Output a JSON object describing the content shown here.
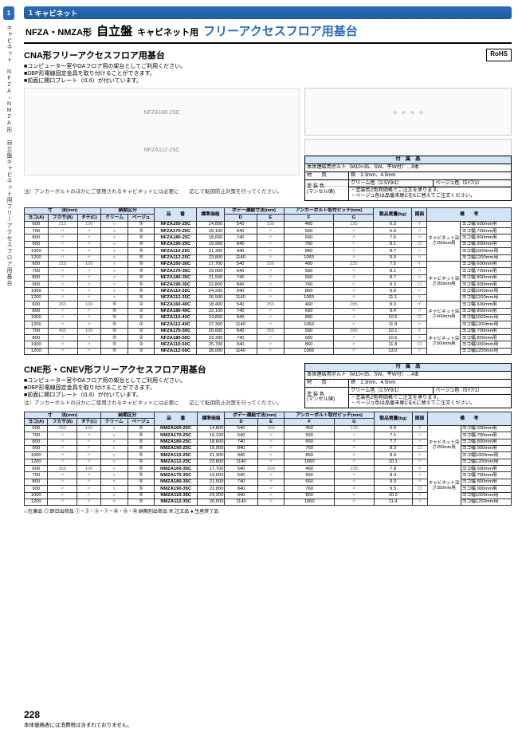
{
  "sidebar": {
    "tab_num": "1",
    "tab_text": "キャビネット",
    "vert_text": "キャビネット　NFZA・NMZA形 自立盤キャビネット用フリーアクセスフロア用基台"
  },
  "header": {
    "num": "1",
    "cat": "キャビネット"
  },
  "title": {
    "prefix": "NFZA・NMZA形",
    "main": "自立盤",
    "sub": "キャビネット用",
    "accent": "フリーアクセスフロア用基台"
  },
  "section1": {
    "title": "CNA形フリーアクセスフロア用基台",
    "rohs": "RoHS",
    "notes": [
      "コンピューター室やOAフロア用の架台としてご利用ください。",
      "DBP形電線固定金具を取り付けることができます。",
      "前面に開口プレート（t1.6）が付いています。"
    ],
    "labels": [
      "NFZA180-25C",
      "NFZA112-25C"
    ],
    "caution": "注）アンカーボルトのほかにご使用されるキャビネットには必要に　　応じて転倒防止対策を行ってください。"
  },
  "accessories": {
    "title": "付　属　品",
    "bolt": "本体連結用ボルト（M10×35、SW、平W付）…4本",
    "mat_label": "材　　質",
    "mat_val": "鉄　2.3mm、4.5mm",
    "color_label": "塗 装 色\n(マンセル値)",
    "color1": "クリーム色（2.5Y9/1）",
    "color2": "ベージュ色（5Y7/1）",
    "color_note": "・塗装色2色同価格でご注文を承ります。\n・ベージュ色は品番末尾CをKに替えてご注文ください。"
  },
  "table1_head": {
    "dim": "寸　　法(mm)",
    "deliv": "納期区分",
    "model": "品　　番",
    "price": "標準価格",
    "body": "ボデー連結寸法(mm)",
    "anchor": "アンカーボルト取付ピッチ(mm)",
    "weight": "製品質量(kg)",
    "drawing": "図面",
    "remarks": "備　　考",
    "a": "ヨコ(A)",
    "b": "フカサ(B)",
    "c": "タテ(C)",
    "cream": "クリーム",
    "beige": "ベージュ",
    "d": "D",
    "e": "E",
    "f": "F",
    "g": "G"
  },
  "table1_rows": [
    {
      "a": "600",
      "b": "215",
      "c": "100",
      "d1": "○",
      "d2": "⑤",
      "m": "NFZA160-25C",
      "p": "14,800",
      "D": "540",
      "E": "100",
      "F": "460",
      "G": "135",
      "w": "6.3",
      "dr": "イ",
      "g": "キャビネット深さ250mm用",
      "r": "ヨコ幅 600mm用"
    },
    {
      "a": "700",
      "b": "〃",
      "c": "〃",
      "d1": "○",
      "d2": "⑤",
      "m": "NFZA170-25C",
      "p": "16,100",
      "D": "640",
      "E": "〃",
      "F": "560",
      "G": "〃",
      "w": "6.9",
      "dr": "〃",
      "g": "",
      "r": "ヨコ幅 700mm用"
    },
    {
      "a": "800",
      "b": "〃",
      "c": "〃",
      "d1": "○",
      "d2": "⑤",
      "m": "NFZA180-25C",
      "p": "18,600",
      "D": "740",
      "E": "〃",
      "F": "660",
      "G": "〃",
      "w": "7.5",
      "dr": "〃",
      "g": "",
      "r": "ヨコ幅 800mm用"
    },
    {
      "a": "900",
      "b": "〃",
      "c": "〃",
      "d1": "○",
      "d2": "⑤",
      "m": "NFZA190-25C",
      "p": "19,900",
      "D": "840",
      "E": "〃",
      "F": "760",
      "G": "〃",
      "w": "8.1",
      "dr": "ロ",
      "g": "",
      "r": "ヨコ幅 900mm用"
    },
    {
      "a": "1000",
      "b": "〃",
      "c": "〃",
      "d1": "○",
      "d2": "⑤",
      "m": "NFZA110-25C",
      "p": "21,300",
      "D": "940",
      "E": "〃",
      "F": "860",
      "G": "〃",
      "w": "8.7",
      "dr": "〃",
      "g": "",
      "r": "ヨコ幅1000mm用"
    },
    {
      "a": "1200",
      "b": "〃",
      "c": "〃",
      "d1": "○",
      "d2": "⑤",
      "m": "NFZA112-25C",
      "p": "23,800",
      "D": "1140",
      "E": "〃",
      "F": "1060",
      "G": "〃",
      "w": "9.9",
      "dr": "〃",
      "g": "",
      "r": "ヨコ幅1200mm用"
    },
    {
      "a": "600",
      "b": "315",
      "c": "100",
      "d1": "○",
      "d2": "⑤",
      "m": "NFZA160-35C",
      "p": "17,700",
      "D": "540",
      "E": "200",
      "F": "460",
      "G": "235",
      "w": "7.5",
      "dr": "イ",
      "g": "キャビネット深さ350mm用",
      "r": "ヨコ幅 600mm用"
    },
    {
      "a": "700",
      "b": "〃",
      "c": "〃",
      "d1": "○",
      "d2": "⑤",
      "m": "NFZA170-35C",
      "p": "19,000",
      "D": "640",
      "E": "〃",
      "F": "560",
      "G": "〃",
      "w": "8.1",
      "dr": "〃",
      "g": "",
      "r": "ヨコ幅 700mm用"
    },
    {
      "a": "800",
      "b": "〃",
      "c": "〃",
      "d1": "○",
      "d2": "⑤",
      "m": "NFZA180-35C",
      "p": "21,500",
      "D": "740",
      "E": "〃",
      "F": "660",
      "G": "〃",
      "w": "8.7",
      "dr": "〃",
      "g": "",
      "r": "ヨコ幅 800mm用"
    },
    {
      "a": "900",
      "b": "〃",
      "c": "〃",
      "d1": "○",
      "d2": "⑤",
      "m": "NFZA190-35C",
      "p": "22,800",
      "D": "840",
      "E": "〃",
      "F": "760",
      "G": "〃",
      "w": "9.3",
      "dr": "ロ",
      "g": "",
      "r": "ヨコ幅 900mm用"
    },
    {
      "a": "1000",
      "b": "〃",
      "c": "〃",
      "d1": "○",
      "d2": "⑤",
      "m": "NFZA110-35C",
      "p": "24,200",
      "D": "940",
      "E": "〃",
      "F": "860",
      "G": "〃",
      "w": "9.9",
      "dr": "〃",
      "g": "",
      "r": "ヨコ幅1000mm用"
    },
    {
      "a": "1200",
      "b": "〃",
      "c": "〃",
      "d1": "○",
      "d2": "⑤",
      "m": "NFZA112-35C",
      "p": "26,500",
      "D": "1140",
      "E": "〃",
      "F": "1060",
      "G": "〃",
      "w": "11.1",
      "dr": "〃",
      "g": "",
      "r": "ヨコ幅1200mm用"
    },
    {
      "a": "600",
      "b": "365",
      "c": "100",
      "d1": "⑤",
      "d2": "①",
      "m": "NFZA160-40C",
      "p": "18,400",
      "D": "540",
      "E": "250",
      "F": "460",
      "G": "285",
      "w": "8.0",
      "dr": "イ",
      "g": "キャビネット深さ400mm用",
      "r": "ヨコ幅 600mm用"
    },
    {
      "a": "800",
      "b": "〃",
      "c": "〃",
      "d1": "⑤",
      "d2": "①",
      "m": "NFZA180-40C",
      "p": "22,100",
      "D": "740",
      "E": "〃",
      "F": "660",
      "G": "〃",
      "w": "9.4",
      "dr": "〃",
      "g": "",
      "r": "ヨコ幅 800mm用"
    },
    {
      "a": "1000",
      "b": "〃",
      "c": "〃",
      "d1": "⑤",
      "d2": "①",
      "m": "NFZA110-40C",
      "p": "24,800",
      "D": "940",
      "E": "〃",
      "F": "860",
      "G": "〃",
      "w": "10.6",
      "dr": "ロ",
      "g": "",
      "r": "ヨコ幅1000mm用"
    },
    {
      "a": "1200",
      "b": "〃",
      "c": "〃",
      "d1": "⑤",
      "d2": "①",
      "m": "NFZA112-40C",
      "p": "27,300",
      "D": "1140",
      "E": "〃",
      "F": "1060",
      "G": "〃",
      "w": "11.8",
      "dr": "〃",
      "g": "",
      "r": "ヨコ幅1200mm用"
    },
    {
      "a": "700",
      "b": "465",
      "c": "100",
      "d1": "⑤",
      "d2": "①",
      "m": "NFZA170-50C",
      "p": "20,600",
      "D": "640",
      "E": "350",
      "F": "560",
      "G": "385",
      "w": "10.1",
      "dr": "イ",
      "g": "キャビネット深さ500mm用",
      "r": "ヨコ幅 700mm用"
    },
    {
      "a": "800",
      "b": "〃",
      "c": "〃",
      "d1": "⑤",
      "d2": "①",
      "m": "NFZA180-50C",
      "p": "23,300",
      "D": "740",
      "E": "〃",
      "F": "660",
      "G": "〃",
      "w": "10.6",
      "dr": "〃",
      "g": "",
      "r": "ヨコ幅 800mm用"
    },
    {
      "a": "1000",
      "b": "〃",
      "c": "〃",
      "d1": "⑤",
      "d2": "①",
      "m": "NFZA110-50C",
      "p": "25,700",
      "D": "940",
      "E": "〃",
      "F": "860",
      "G": "〃",
      "w": "11.8",
      "dr": "ロ",
      "g": "",
      "r": "ヨコ幅1000mm用"
    },
    {
      "a": "1200",
      "b": "〃",
      "c": "〃",
      "d1": "⑤",
      "d2": "①",
      "m": "NFZA112-50C",
      "p": "28,000",
      "D": "1140",
      "E": "〃",
      "F": "1060",
      "G": "〃",
      "w": "13.0",
      "dr": "〃",
      "g": "",
      "r": "ヨコ幅1200mm用"
    }
  ],
  "section2": {
    "title": "CNE形・CNEV形フリーアクセスフロア用基台",
    "notes": [
      "コンピューター室やOAフロア用の架台としてご利用ください。",
      "DBP形電線固定金具を取り付けることができます。",
      "前面に開口プレート（t1.6）が付いています。"
    ],
    "caution": "注）アンカーボルトのほかにご使用されるキャビネットには必要に　　応じて転倒防止対策を行ってください。"
  },
  "table2_rows": [
    {
      "a": "600",
      "b": "250",
      "c": "100",
      "d1": "○",
      "d2": "⑤",
      "m": "NMZA160-25C",
      "p": "14,800",
      "D": "540",
      "E": "100",
      "F": "460",
      "G": "135",
      "w": "6.5",
      "dr": "イ",
      "g": "キャビネット深さ250mm用",
      "r": "ヨコ幅 600mm用"
    },
    {
      "a": "700",
      "b": "〃",
      "c": "〃",
      "d1": "○",
      "d2": "⑤",
      "m": "NMZA170-25C",
      "p": "16,100",
      "D": "640",
      "E": "〃",
      "F": "560",
      "G": "〃",
      "w": "7.1",
      "dr": "〃",
      "g": "",
      "r": "ヨコ幅 700mm用"
    },
    {
      "a": "800",
      "b": "〃",
      "c": "〃",
      "d1": "○",
      "d2": "⑤",
      "m": "NMZA180-25C",
      "p": "18,600",
      "D": "740",
      "E": "〃",
      "F": "660",
      "G": "〃",
      "w": "7.7",
      "dr": "〃",
      "g": "",
      "r": "ヨコ幅 800mm用"
    },
    {
      "a": "900",
      "b": "〃",
      "c": "〃",
      "d1": "○",
      "d2": "⑤",
      "m": "NMZA190-25C",
      "p": "19,900",
      "D": "840",
      "E": "〃",
      "F": "760",
      "G": "〃",
      "w": "8.3",
      "dr": "ロ",
      "g": "",
      "r": "ヨコ幅 900mm用"
    },
    {
      "a": "1000",
      "b": "〃",
      "c": "〃",
      "d1": "○",
      "d2": "⑤",
      "m": "NMZA110-25C",
      "p": "21,300",
      "D": "940",
      "E": "〃",
      "F": "860",
      "G": "〃",
      "w": "8.9",
      "dr": "〃",
      "g": "",
      "r": "ヨコ幅1000mm用"
    },
    {
      "a": "1200",
      "b": "〃",
      "c": "〃",
      "d1": "○",
      "d2": "⑤",
      "m": "NMZA112-25C",
      "p": "23,800",
      "D": "1140",
      "E": "〃",
      "F": "1060",
      "G": "〃",
      "w": "10.1",
      "dr": "〃",
      "g": "",
      "r": "ヨコ幅1200mm用"
    },
    {
      "a": "600",
      "b": "350",
      "c": "100",
      "d1": "○",
      "d2": "⑤",
      "m": "NMZA160-35C",
      "p": "17,700",
      "D": "540",
      "E": "200",
      "F": "460",
      "G": "235",
      "w": "7.8",
      "dr": "イ",
      "g": "キャビネット深さ350mm用",
      "r": "ヨコ幅 600mm用"
    },
    {
      "a": "700",
      "b": "〃",
      "c": "〃",
      "d1": "○",
      "d2": "⑤",
      "m": "NMZA170-35C",
      "p": "19,000",
      "D": "640",
      "E": "〃",
      "F": "560",
      "G": "〃",
      "w": "8.4",
      "dr": "〃",
      "g": "",
      "r": "ヨコ幅 700mm用"
    },
    {
      "a": "800",
      "b": "〃",
      "c": "〃",
      "d1": "○",
      "d2": "⑤",
      "m": "NMZA180-35C",
      "p": "21,500",
      "D": "740",
      "E": "〃",
      "F": "660",
      "G": "〃",
      "w": "9.0",
      "dr": "〃",
      "g": "",
      "r": "ヨコ幅 800mm用"
    },
    {
      "a": "900",
      "b": "〃",
      "c": "〃",
      "d1": "○",
      "d2": "⑤",
      "m": "NMZA190-35C",
      "p": "22,800",
      "D": "840",
      "E": "〃",
      "F": "760",
      "G": "〃",
      "w": "9.5",
      "dr": "ロ",
      "g": "",
      "r": "ヨコ幅 900mm用"
    },
    {
      "a": "1000",
      "b": "〃",
      "c": "〃",
      "d1": "○",
      "d2": "⑤",
      "m": "NMZA110-35C",
      "p": "24,200",
      "D": "940",
      "E": "〃",
      "F": "860",
      "G": "〃",
      "w": "10.2",
      "dr": "〃",
      "g": "",
      "r": "ヨコ幅1000mm用"
    },
    {
      "a": "1200",
      "b": "〃",
      "c": "〃",
      "d1": "○",
      "d2": "⑤",
      "m": "NMZA112-35C",
      "p": "26,500",
      "D": "1140",
      "E": "〃",
      "F": "1060",
      "G": "〃",
      "w": "11.4",
      "dr": "〃",
      "g": "",
      "r": "ヨコ幅1200mm用"
    }
  ],
  "legend": "○:在庫品 ◎:即日出荷品 ①・③・⑤・⑦・⑩・⑮・⑳:納期別出荷品 ▣:注文品 ●:生産終了品",
  "footer_note": "本体価格表には消費税は含まれておりません。",
  "page_num": "228"
}
